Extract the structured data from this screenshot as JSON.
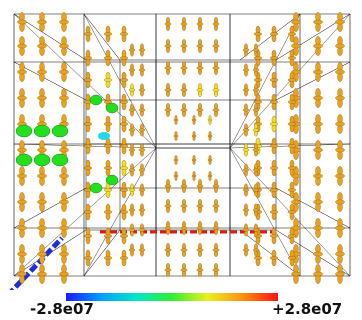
{
  "visualization": {
    "kind": "3d-tensor-glyph-field",
    "glyph_color_default": "#e8a21e",
    "glyph_color_highlight": "#f0e01e",
    "sphere_color": "#22e01e",
    "axis_colors": {
      "x": "#e01a10",
      "z": "#1a30e0"
    },
    "grid_color": "#000000"
  },
  "colorbar": {
    "min_label": "-2.8e07",
    "max_label": "+2.8e07",
    "gradient": [
      "#1a1aff",
      "#00a0ff",
      "#00e8c8",
      "#30f030",
      "#e8f020",
      "#ff9010",
      "#ff1010"
    ]
  }
}
